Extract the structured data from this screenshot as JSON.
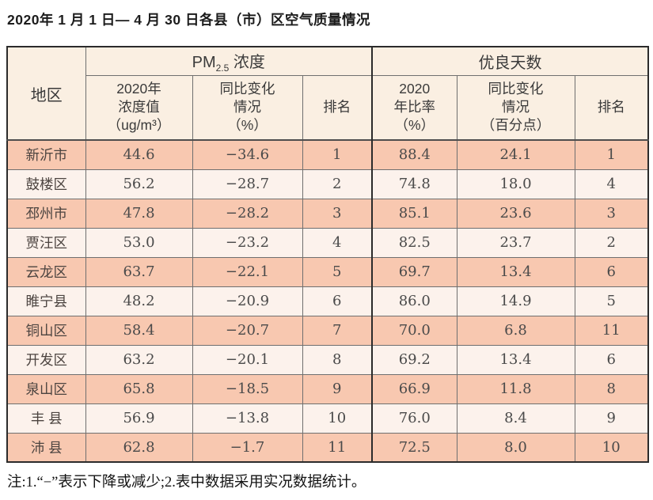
{
  "title": "2020年 1 月 1 日— 4 月 30 日各县（市）区空气质量情况",
  "footnote": "注:1.“−”表示下降或减少;2.表中数据采用实况数据统计。",
  "colors": {
    "row_odd": "#f8c8b0",
    "row_even": "#fcf2ec",
    "header_bg": "#faefe2",
    "border_dark": "#2b2b2b",
    "border_inner": "#6f6f6f"
  },
  "chart_data": {
    "type": "table",
    "title": "2020年 1 月 1 日— 4 月 30 日各县（市）区空气质量情况",
    "corner_header": "地区",
    "column_groups": [
      {
        "name": "PM2.5浓度",
        "label_main": "PM",
        "label_sub": "2.5",
        "label_rest": " 浓度",
        "columns": [
          "2020年\n浓度值\n（ug/m³）",
          "同比变化\n情况\n（%）",
          "排名"
        ]
      },
      {
        "name": "优良天数",
        "label_main": "优良天数",
        "label_sub": "",
        "label_rest": "",
        "columns": [
          "2020\n年比率\n（%）",
          "同比变化\n情况\n（百分点）",
          "排名"
        ]
      }
    ],
    "rows": [
      {
        "region": "新沂市",
        "values": [
          "44.6",
          "−34.6",
          "1",
          "88.4",
          "24.1",
          "1"
        ]
      },
      {
        "region": "鼓楼区",
        "values": [
          "56.2",
          "−28.7",
          "2",
          "74.8",
          "18.0",
          "4"
        ]
      },
      {
        "region": "邳州市",
        "values": [
          "47.8",
          "−28.2",
          "3",
          "85.1",
          "23.6",
          "3"
        ]
      },
      {
        "region": "贾汪区",
        "values": [
          "53.0",
          "−23.2",
          "4",
          "82.5",
          "23.7",
          "2"
        ]
      },
      {
        "region": "云龙区",
        "values": [
          "63.7",
          "−22.1",
          "5",
          "69.7",
          "13.4",
          "6"
        ]
      },
      {
        "region": "睢宁县",
        "values": [
          "48.2",
          "−20.9",
          "6",
          "86.0",
          "14.9",
          "5"
        ]
      },
      {
        "region": "铜山区",
        "values": [
          "58.4",
          "−20.7",
          "7",
          "70.0",
          "6.8",
          "11"
        ]
      },
      {
        "region": "开发区",
        "values": [
          "63.2",
          "−20.1",
          "8",
          "69.2",
          "13.4",
          "6"
        ]
      },
      {
        "region": "泉山区",
        "values": [
          "65.8",
          "−18.5",
          "9",
          "66.9",
          "11.8",
          "8"
        ]
      },
      {
        "region": "丰 县",
        "values": [
          "56.9",
          "−13.8",
          "10",
          "76.0",
          "8.4",
          "9"
        ]
      },
      {
        "region": "沛 县",
        "values": [
          "62.8",
          "−1.7",
          "11",
          "72.5",
          "8.0",
          "10"
        ]
      }
    ]
  }
}
